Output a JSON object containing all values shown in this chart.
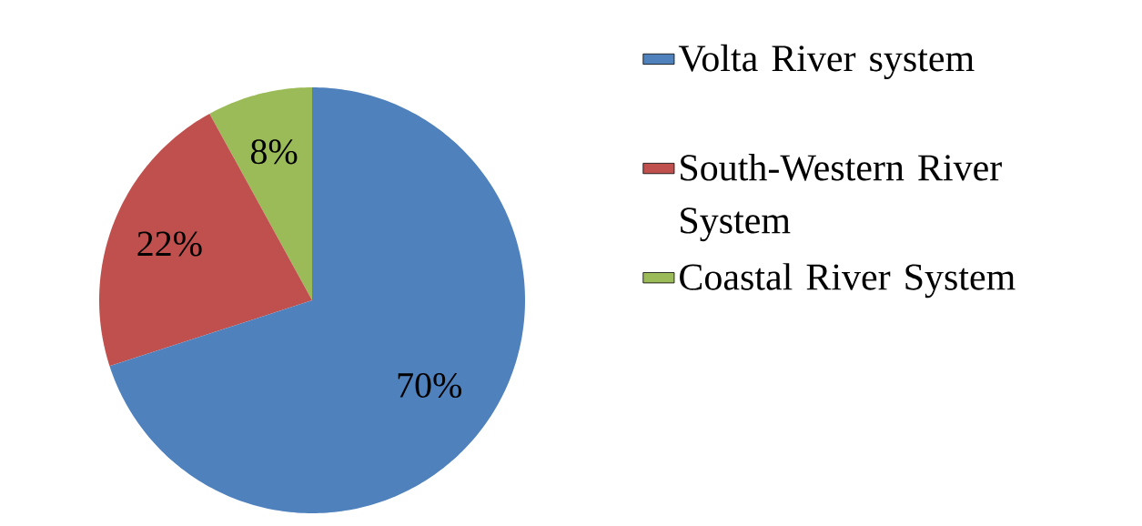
{
  "chart_data": {
    "type": "pie",
    "categories": [
      "Volta River system",
      "South-Western River System",
      "Coastal River  System"
    ],
    "values": [
      70,
      22,
      8
    ],
    "colors": [
      "#4f81bd",
      "#c0504d",
      "#9bbb59"
    ],
    "value_labels": [
      "70%",
      "22%",
      "8%"
    ],
    "legend": "right"
  }
}
